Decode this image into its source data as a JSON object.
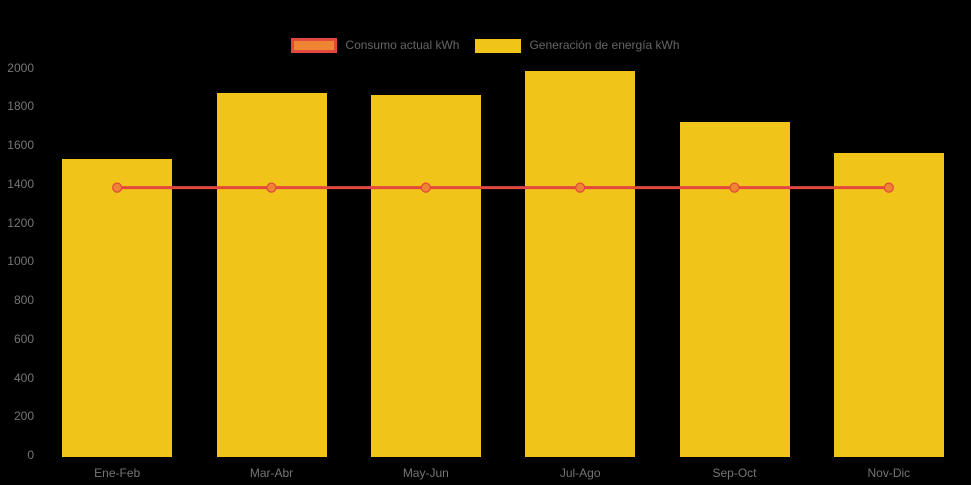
{
  "chart_data": {
    "type": "bar",
    "title": "",
    "xlabel": "",
    "ylabel": "",
    "categories": [
      "Ene-Feb",
      "Mar-Abr",
      "May-Jun",
      "Jul-Ago",
      "Sep-Oct",
      "Nov-Dic"
    ],
    "series": [
      {
        "name": "Consumo actual kWh",
        "type": "line",
        "color": "#E2483D",
        "marker_color": "#EF8432",
        "values": [
          1380,
          1380,
          1380,
          1380,
          1380,
          1380
        ]
      },
      {
        "name": "Generación de energía kWh",
        "type": "bar",
        "color": "#F0C419",
        "values": [
          1530,
          1870,
          1860,
          1980,
          1720,
          1560
        ]
      }
    ],
    "ylim": [
      0,
      2000
    ],
    "yticks": [
      0,
      200,
      400,
      600,
      800,
      1000,
      1200,
      1400,
      1600,
      1800,
      2000
    ],
    "grid": false,
    "legend_position": "top",
    "background_color": "#000000",
    "axis_label_color": "#757575",
    "legend_label_color": "#666666"
  }
}
